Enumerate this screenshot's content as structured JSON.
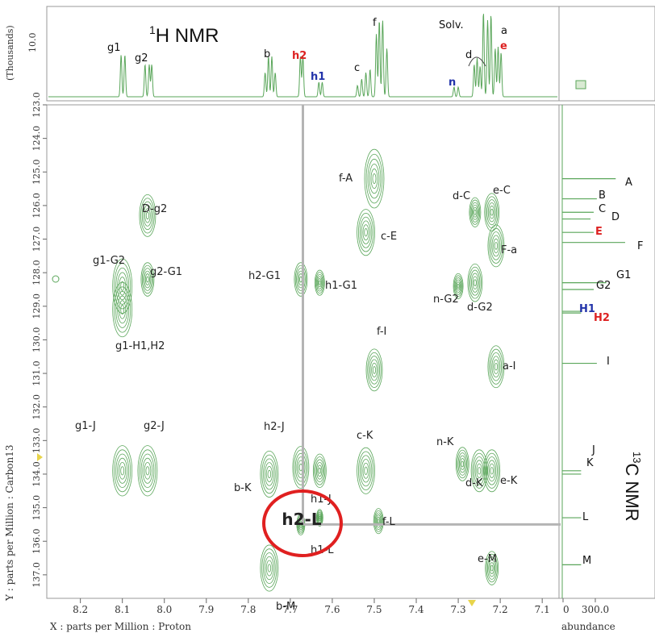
{
  "chart_data": {
    "type": "heatmap",
    "subtype": "2D NMR HMBC contour plot",
    "x_axis": {
      "label": "X : parts per Million : Proton",
      "range": [
        8.28,
        7.06
      ],
      "reversed": true,
      "ticks": [
        "8.2",
        "8.1",
        "8.0",
        "7.9",
        "7.8",
        "7.7",
        "7.6",
        "7.5",
        "7.4",
        "7.3",
        "7.2",
        "7.1"
      ]
    },
    "y_axis": {
      "label": "Y : parts per Million : Carbon13",
      "range": [
        123.0,
        137.7
      ],
      "reversed": true,
      "ticks": [
        "123.0",
        "124.0",
        "125.0",
        "126.0",
        "127.0",
        "128.0",
        "129.0",
        "130.0",
        "131.0",
        "132.0",
        "133.0",
        "134.0",
        "135.0",
        "136.0",
        "137.0"
      ]
    },
    "top_spectrum": {
      "title_prefix": "1",
      "title_main": "H NMR",
      "y_label": "(Thousands)",
      "y_tick": "10.0",
      "peaks": [
        {
          "label": "g1",
          "color": "#111111",
          "x": 8.1
        },
        {
          "label": "g2",
          "color": "#111111",
          "x": 8.04
        },
        {
          "label": "b",
          "color": "#111111",
          "x": 7.75
        },
        {
          "label": "h2",
          "color": "#dd2222",
          "x": 7.675
        },
        {
          "label": "h1",
          "color": "#2233aa",
          "x": 7.63
        },
        {
          "label": "c",
          "color": "#111111",
          "x": 7.53
        },
        {
          "label": "f",
          "color": "#111111",
          "x": 7.485
        },
        {
          "label": "n",
          "color": "#2233aa",
          "x": 7.3
        },
        {
          "label": "d",
          "color": "#111111",
          "x": 7.25
        },
        {
          "label": "Solv.",
          "color": "#111111",
          "x": 7.26
        },
        {
          "label": "a",
          "color": "#111111",
          "x": 7.205
        },
        {
          "label": "e",
          "color": "#dd2222",
          "x": 7.205
        }
      ]
    },
    "right_spectrum": {
      "title_prefix": "13",
      "title_main": "C NMR",
      "x_label": "abundance",
      "x_ticks": [
        "0",
        "300.0"
      ],
      "peaks": [
        {
          "label": "A",
          "color": "#111111",
          "y": 125.2,
          "abundance": 0.85
        },
        {
          "label": "B",
          "color": "#111111",
          "y": 125.8,
          "abundance": 0.55
        },
        {
          "label": "C",
          "color": "#111111",
          "y": 126.2,
          "abundance": 0.5
        },
        {
          "label": "D",
          "color": "#111111",
          "y": 126.4,
          "abundance": 0.45
        },
        {
          "label": "E",
          "color": "#dd2222",
          "y": 126.8,
          "abundance": 0.5
        },
        {
          "label": "F",
          "color": "#111111",
          "y": 127.1,
          "abundance": 1.0
        },
        {
          "label": "G1",
          "color": "#111111",
          "y": 128.3,
          "abundance": 0.7
        },
        {
          "label": "G2",
          "color": "#111111",
          "y": 128.5,
          "abundance": 0.5
        },
        {
          "label": "H1",
          "color": "#2233aa",
          "y": 129.15,
          "abundance": 0.3
        },
        {
          "label": "H2",
          "color": "#dd2222",
          "y": 129.2,
          "abundance": 0.3
        },
        {
          "label": "I",
          "color": "#111111",
          "y": 130.7,
          "abundance": 0.55
        },
        {
          "label": "J",
          "color": "#111111",
          "y": 133.9,
          "abundance": 0.3
        },
        {
          "label": "K",
          "color": "#111111",
          "y": 134.0,
          "abundance": 0.3
        },
        {
          "label": "L",
          "color": "#111111",
          "y": 135.3,
          "abundance": 0.3
        },
        {
          "label": "M",
          "color": "#111111",
          "y": 136.7,
          "abundance": 0.3
        }
      ]
    },
    "cross_peaks": [
      {
        "label": "D-g2",
        "x": 8.04,
        "y": 126.3,
        "size": 1.0
      },
      {
        "label": "g1-G2",
        "x": 8.1,
        "y": 128.4,
        "size": 1.3
      },
      {
        "label": "g2-G1",
        "x": 8.04,
        "y": 128.2,
        "size": 0.8
      },
      {
        "label": "g1-H1,H2",
        "x": 8.1,
        "y": 129.1,
        "size": 1.3
      },
      {
        "label": "g1-J",
        "x": 8.1,
        "y": 133.9,
        "size": 1.2
      },
      {
        "label": "g2-J",
        "x": 8.04,
        "y": 133.9,
        "size": 1.2
      },
      {
        "label": "h2-G1",
        "x": 7.675,
        "y": 128.2,
        "size": 0.8
      },
      {
        "label": "h1-G1",
        "x": 7.63,
        "y": 128.3,
        "size": 0.6
      },
      {
        "label": "h2-J",
        "x": 7.675,
        "y": 133.8,
        "size": 1.0
      },
      {
        "label": "h1-J",
        "x": 7.63,
        "y": 133.9,
        "size": 0.8
      },
      {
        "label": "b-K",
        "x": 7.75,
        "y": 134.0,
        "size": 1.1
      },
      {
        "label": "h1-L",
        "x": 7.63,
        "y": 135.3,
        "size": 0.4
      },
      {
        "label": "h2-L",
        "x": 7.675,
        "y": 135.5,
        "size": 0.5
      },
      {
        "label": "b-M",
        "x": 7.75,
        "y": 136.8,
        "size": 1.1
      },
      {
        "label": "f-A",
        "x": 7.5,
        "y": 125.2,
        "size": 1.4
      },
      {
        "label": "c-E",
        "x": 7.52,
        "y": 126.8,
        "size": 1.1
      },
      {
        "label": "f-I",
        "x": 7.5,
        "y": 130.9,
        "size": 1.0
      },
      {
        "label": "c-K",
        "x": 7.52,
        "y": 133.9,
        "size": 1.1
      },
      {
        "label": "f-L",
        "x": 7.49,
        "y": 135.4,
        "size": 0.6
      },
      {
        "label": "d-C",
        "x": 7.26,
        "y": 126.2,
        "size": 0.7
      },
      {
        "label": "e-C",
        "x": 7.22,
        "y": 126.2,
        "size": 0.9
      },
      {
        "label": "F-a",
        "x": 7.21,
        "y": 127.2,
        "size": 1.0
      },
      {
        "label": "n-G2",
        "x": 7.3,
        "y": 128.4,
        "size": 0.6
      },
      {
        "label": "d-G2",
        "x": 7.26,
        "y": 128.3,
        "size": 0.9
      },
      {
        "label": "a-I",
        "x": 7.21,
        "y": 130.8,
        "size": 1.0
      },
      {
        "label": "n-K",
        "x": 7.29,
        "y": 133.7,
        "size": 0.8
      },
      {
        "label": "d-K",
        "x": 7.25,
        "y": 133.9,
        "size": 1.0
      },
      {
        "label": "e-K",
        "x": 7.22,
        "y": 133.9,
        "size": 1.0
      },
      {
        "label": "e-M",
        "x": 7.22,
        "y": 136.8,
        "size": 0.8
      }
    ],
    "highlight": {
      "label": "h2-L",
      "color": "#e02020"
    },
    "guide_lines": {
      "x": 7.67,
      "y": 135.5,
      "color": "#b4b4b4"
    },
    "contour_color": "#5aa65a"
  }
}
